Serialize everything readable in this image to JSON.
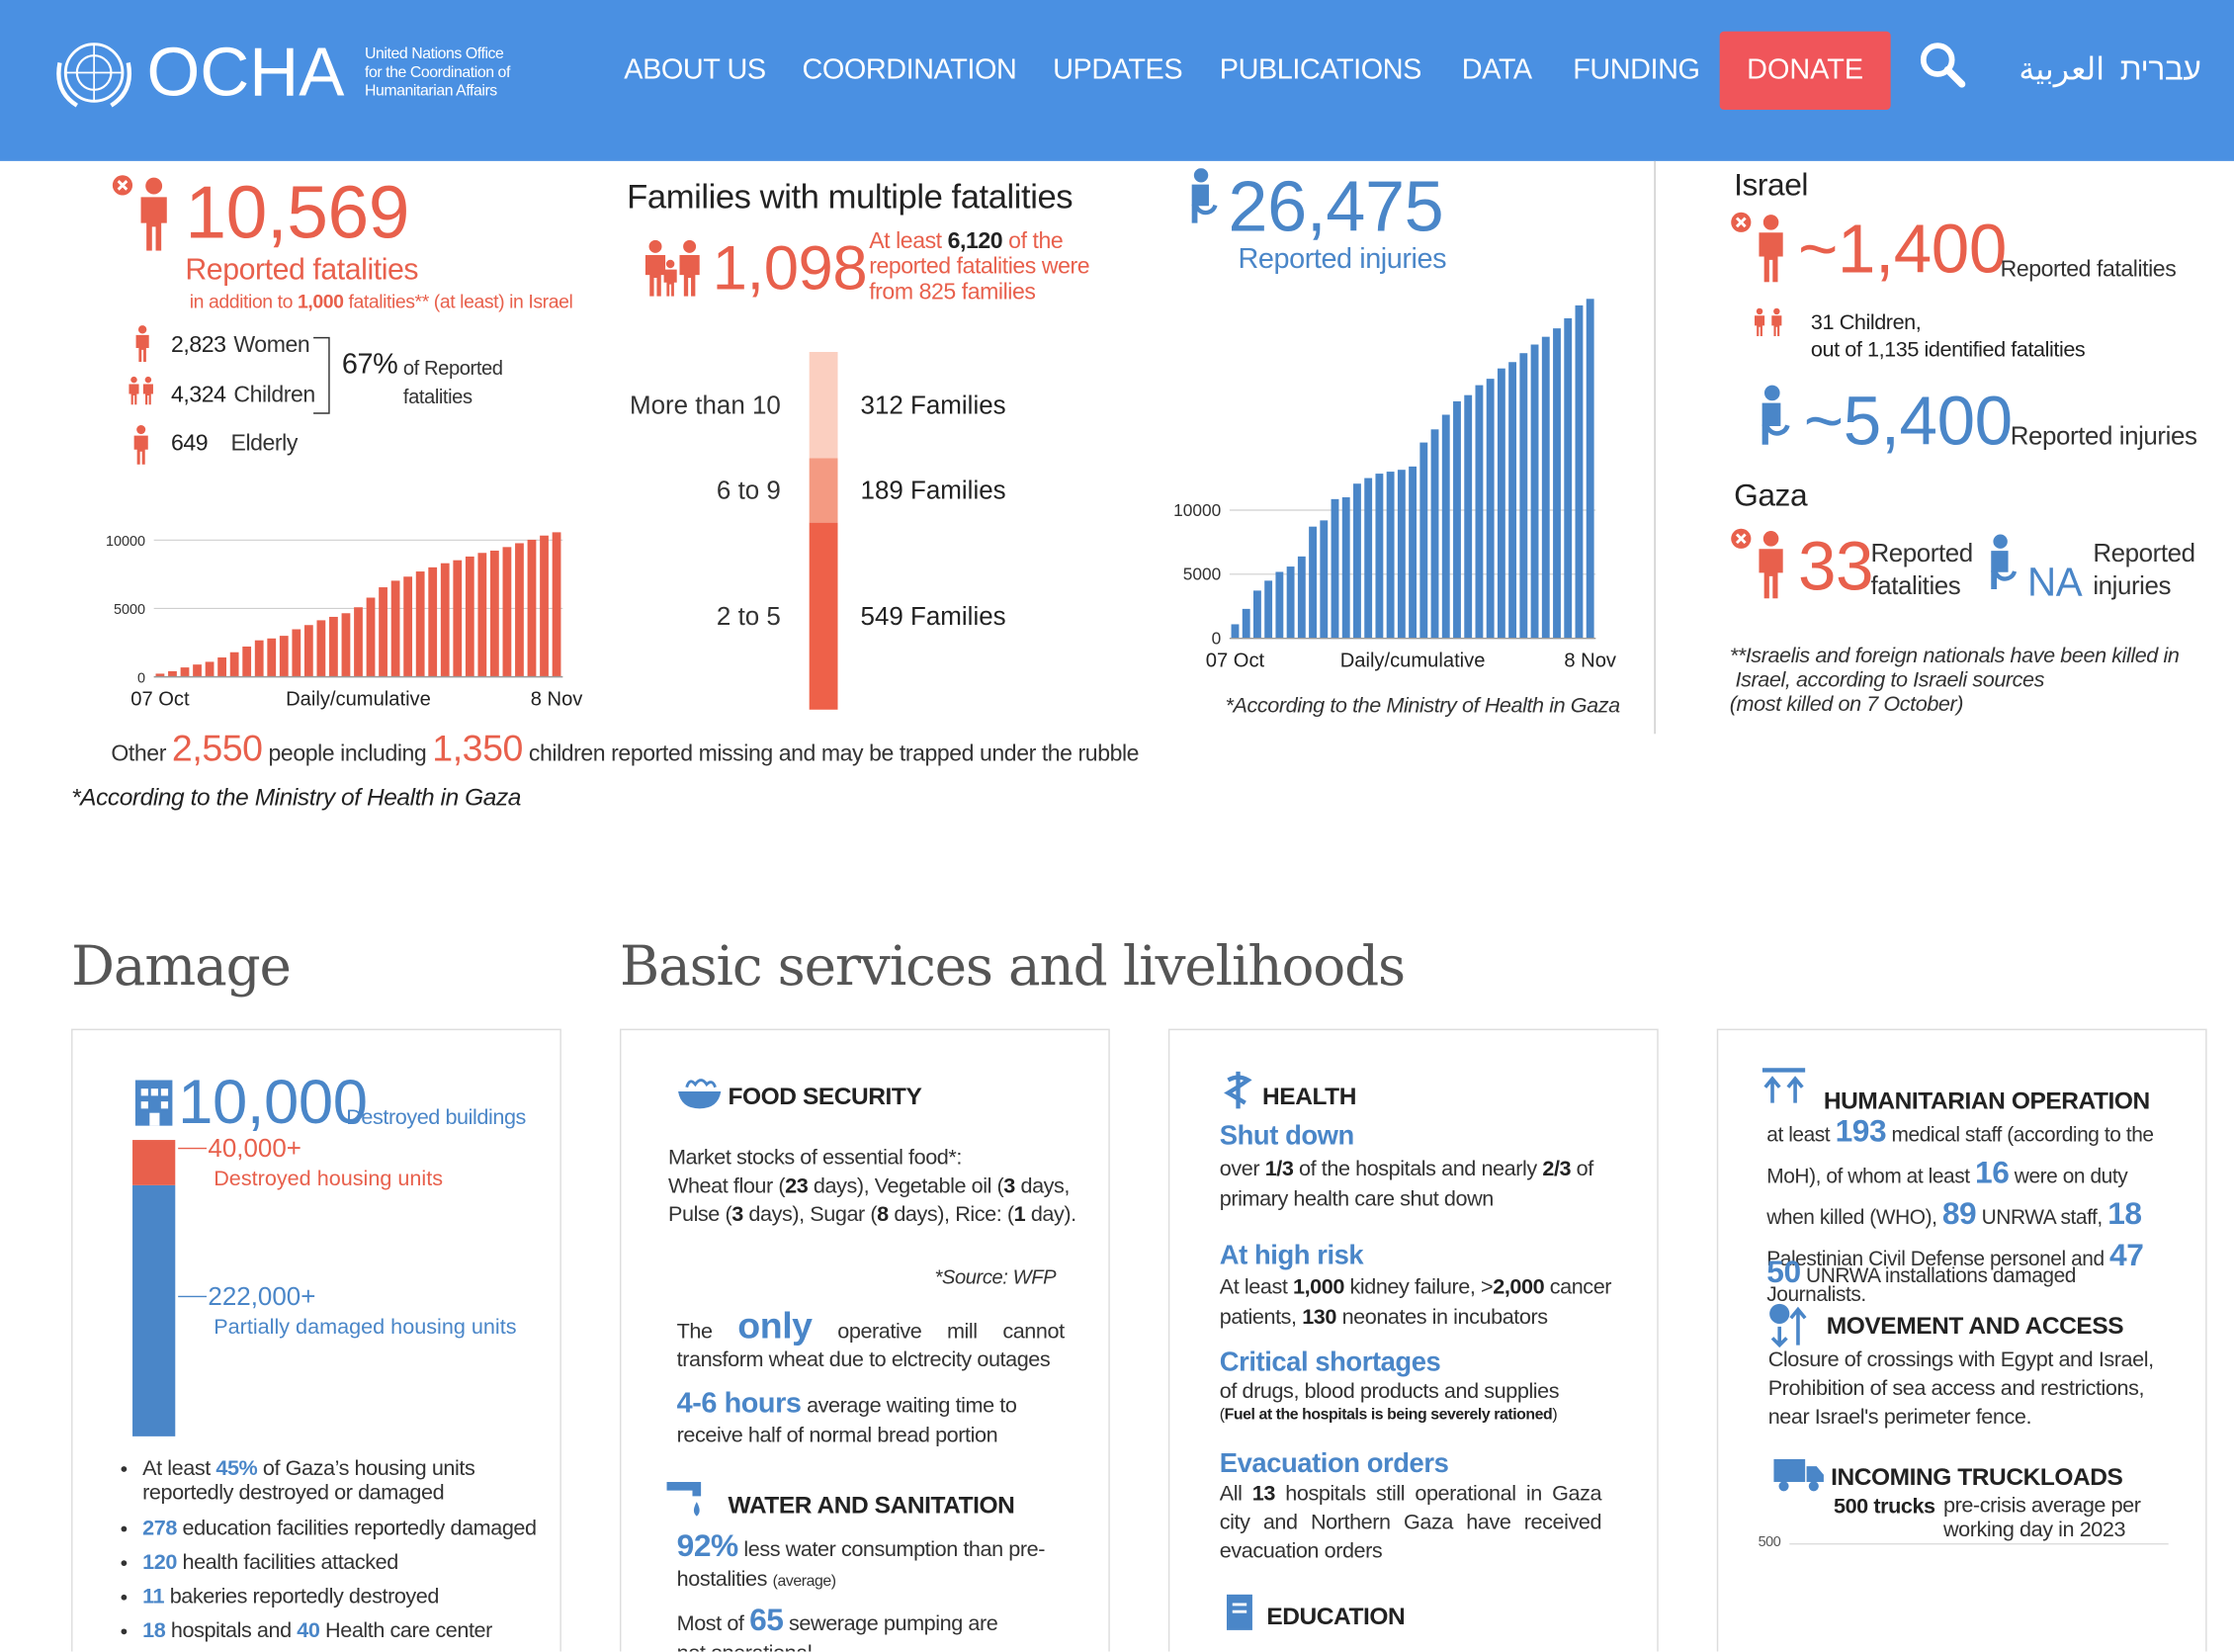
{
  "header": {
    "logo": "OCHA",
    "tagline": [
      "United Nations Office",
      "for the Coordination of",
      "Humanitarian Affairs"
    ],
    "nav": [
      "ABOUT US",
      "COORDINATION",
      "UPDATES",
      "PUBLICATIONS",
      "DATA",
      "FUNDING"
    ],
    "donate": "DONATE",
    "languages": [
      "العربية",
      "עברית"
    ]
  },
  "gaza": {
    "fatalities": "10,569",
    "fatalities_label": "Reported fatalities",
    "note": [
      "in addition to ",
      "1,000",
      " fatalities** (at least) in Israel"
    ],
    "breakdown": [
      {
        "value": "2,823",
        "label": "Women"
      },
      {
        "value": "4,324",
        "label": "Children"
      },
      {
        "value": "649",
        "label": "Elderly"
      }
    ],
    "share": "67%",
    "share_label": [
      "of Reported",
      "fatalities"
    ],
    "missing": [
      "Other ",
      "2,550",
      " people including ",
      "1,350",
      " children reported missing and  may be trapped under the rubble"
    ],
    "source": "*According to the Ministry of Health in Gaza"
  },
  "families": {
    "title": "Families with multiple fatalities",
    "value": "1,098",
    "note": [
      "At least ",
      "6,120",
      " of the reported fatalities were from 825 families"
    ]
  },
  "injuries": {
    "value": "26,475",
    "label": "Reported injuries",
    "source": "*According to the Ministry of Health in Gaza"
  },
  "israel": {
    "title": "Israel",
    "fatalities": "~1,400",
    "fatalities_label": "Reported fatalities",
    "children": [
      "31",
      " Children,"
    ],
    "children_note": "out of 1,135 identified fatalities",
    "injuries": "~5,400",
    "injuries_label": "Reported injuries",
    "gaza_title": "Gaza",
    "gaza_fatalities": "33",
    "gaza_fatalities_label": [
      "Reported",
      "fatalities"
    ],
    "gaza_injuries": "NA",
    "gaza_injuries_label": [
      "Reported",
      "injuries"
    ],
    "note": [
      "**Israelis and foreign nationals have been killed in",
      "Israel, according to Israeli sources",
      "(most killed on 7 October)"
    ]
  },
  "damage": {
    "title": "Damage",
    "buildings": "10,000",
    "buildings_label": "Destroyed buildings",
    "bullets": [
      [
        "At least ",
        "45%",
        " of Gaza’s housing units reportedly destroyed or damaged"
      ],
      [
        "278",
        " education facilities reportedly damaged"
      ],
      [
        "120",
        " health facilities attacked"
      ],
      [
        "11",
        " bakeries reportedly destroyed"
      ],
      [
        "18",
        " hospitals and ",
        "40",
        " Health care center"
      ]
    ]
  },
  "services": {
    "title": "Basic services and livelihoods",
    "food": {
      "title": "FOOD SECURITY",
      "stocks": "Market stocks of essential food*:",
      "list": [
        "Wheat flour (",
        "23",
        " days), Vegetable oil (",
        "3",
        " days, Pulse (",
        "3",
        " days), Sugar (",
        "8",
        " days), Rice: (",
        "1",
        " day)."
      ],
      "source": "*Source: WFP",
      "mill": [
        "The ",
        "only",
        " operative mill cannot transform wheat due to elctrecity outages"
      ],
      "wait": [
        "4-6 hours",
        " average waiting time to receive half of normal bread portion"
      ]
    },
    "water": {
      "title": "WATER AND SANITATION",
      "less": [
        "92%",
        " less water consumption than pre-hostalities ",
        "(average)"
      ],
      "sewer": [
        "Most of ",
        "65",
        " sewerage pumping are not operational"
      ]
    },
    "health": {
      "title": "HEALTH",
      "shut_head": "Shut down",
      "shut": [
        "over ",
        "1/3",
        " of the hospitals and nearly ",
        "2/3",
        " of primary health care shut down"
      ],
      "risk_head": "At high risk",
      "risk": [
        "At least ",
        "1,000",
        " kidney failure, >",
        "2,000",
        " cancer patients, ",
        "130",
        " neonates in incubators"
      ],
      "short_head": "Critical shortages",
      "short": "of drugs, blood products and supplies",
      "short_note": [
        "(",
        "Fuel at the hospitals is being severely rationed",
        ")"
      ],
      "evac_head": "Evacuation orders",
      "evac": [
        "All ",
        "13",
        " hospitals still operational in Gaza city and Northern Gaza have received evacuation orders"
      ],
      "education": "EDUCATION"
    },
    "humanitarian": {
      "title": "HUMANITARIAN OPERATION",
      "text": [
        "at least ",
        "193",
        " medical staff (according to the MoH), of whom at least ",
        "16",
        " were on duty when killed (WHO), ",
        "89",
        " UNRWA staff, ",
        "18",
        " Palestinian Civil Defense personel and ",
        "47",
        " Journalists."
      ],
      "installations": [
        "50",
        " UNRWA installations damaged"
      ]
    },
    "movement": {
      "title": "MOVEMENT AND ACCESS",
      "text": "Closure of crossings with Egypt and Israel, Prohibition of sea access and restrictions, near Israel's perimeter fence."
    },
    "trucks": {
      "title": "INCOMING TRUCKLOADS",
      "value": "500 trucks",
      "note": "pre-crisis average per working day in 2023",
      "axis": "500"
    }
  },
  "chart_data": [
    {
      "type": "bar",
      "x_label": "Daily/cumulative",
      "categories": [
        "07 Oct",
        null,
        null,
        null,
        null,
        null,
        null,
        null,
        null,
        null,
        null,
        null,
        null,
        null,
        null,
        null,
        null,
        null,
        null,
        null,
        null,
        null,
        null,
        null,
        null,
        null,
        null,
        null,
        null,
        null,
        null,
        null,
        "8 Nov"
      ],
      "values": [
        232,
        413,
        687,
        900,
        1100,
        1417,
        1799,
        2215,
        2670,
        2808,
        3000,
        3478,
        3785,
        4137,
        4385,
        4651,
        5087,
        5791,
        6546,
        7028,
        7326,
        7703,
        8005,
        8306,
        8525,
        8796,
        9061,
        9227,
        9488,
        9770,
        10022,
        10328,
        10569
      ],
      "color": "#e8604c",
      "ylim": [
        0,
        11000
      ],
      "yticks": [
        0,
        5000,
        10000
      ],
      "grid": true
    },
    {
      "type": "bar",
      "x_label": "Daily/cumulative",
      "categories": [
        "07 Oct",
        null,
        null,
        null,
        null,
        null,
        null,
        null,
        null,
        null,
        null,
        null,
        null,
        null,
        null,
        null,
        null,
        null,
        null,
        null,
        null,
        null,
        null,
        null,
        null,
        null,
        null,
        null,
        null,
        null,
        null,
        null,
        "8 Nov"
      ],
      "values": [
        1100,
        2300,
        3726,
        4500,
        5184,
        5600,
        6388,
        8714,
        9200,
        10859,
        11000,
        12065,
        12500,
        12845,
        13000,
        13145,
        13401,
        15273,
        16297,
        17439,
        18484,
        18967,
        19743,
        20242,
        21048,
        21543,
        22240,
        22911,
        23516,
        24173,
        24958,
        25965,
        26475
      ],
      "color": "#4a86c8",
      "ylim": [
        0,
        27000
      ],
      "yticks": [
        0,
        5000,
        10000
      ],
      "grid": true
    },
    {
      "type": "stack",
      "series": [
        {
          "name": "2 to 5",
          "color": "#ee6149",
          "values": [
            549
          ],
          "value_labels": [
            "549  Families"
          ]
        },
        {
          "name": "6 to 9",
          "color": "#f49a82",
          "values": [
            189
          ],
          "value_labels": [
            "189 Families"
          ]
        },
        {
          "name": "More than 10",
          "color": "#fbcfc0",
          "values": [
            312
          ],
          "value_labels": [
            "312 Families"
          ]
        }
      ]
    },
    {
      "type": "stack",
      "series": [
        {
          "name": "Partially damaged housing units",
          "color": "#4a86c8",
          "values": [
            222000
          ],
          "value_labels": [
            "222,000+"
          ]
        },
        {
          "name": "Destroyed housing units",
          "color": "#e8604c",
          "values": [
            40000
          ],
          "value_labels": [
            "40,000+"
          ]
        }
      ]
    }
  ]
}
